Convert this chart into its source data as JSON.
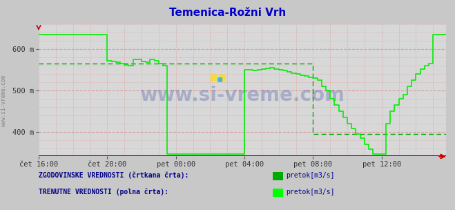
{
  "title": "Temenica-Rožni Vrh",
  "title_color": "#0000cc",
  "bg_color": "#c8c8c8",
  "plot_bg_color": "#d8d8d8",
  "ylim": [
    340,
    660
  ],
  "yticks": [
    400,
    500,
    600
  ],
  "ytick_labels": [
    "400 m",
    "500 m",
    "600 m"
  ],
  "xtick_labels": [
    "čet 16:00",
    "čet 20:00",
    "pet 00:00",
    "pet 04:00",
    "pet 08:00",
    "pet 12:00"
  ],
  "xtick_positions": [
    0,
    16,
    32,
    48,
    64,
    80
  ],
  "total_points": 96,
  "watermark": "www.si-vreme.com",
  "watermark_color": "#1a3399",
  "watermark_alpha": 0.25,
  "legend_hist_label": "pretok[m3/s]",
  "legend_curr_label": "pretok[m3/s]",
  "legend_hist_color": "#00aa00",
  "legend_curr_color": "#00ff00",
  "line_color_hist": "#00aa00",
  "line_color_curr": "#00ee00",
  "hist_y": [
    565,
    565,
    565,
    565,
    565,
    565,
    565,
    565,
    565,
    565,
    565,
    565,
    565,
    565,
    565,
    565,
    565,
    565,
    565,
    565,
    565,
    565,
    565,
    565,
    565,
    565,
    565,
    565,
    565,
    565,
    565,
    565,
    565,
    565,
    565,
    565,
    565,
    565,
    565,
    565,
    565,
    565,
    565,
    565,
    565,
    565,
    565,
    565,
    565,
    565,
    565,
    565,
    565,
    565,
    565,
    565,
    565,
    565,
    565,
    565,
    565,
    565,
    565,
    565,
    395,
    395,
    395,
    395,
    395,
    395,
    395,
    395,
    395,
    395,
    395,
    395,
    395,
    395,
    395,
    395,
    395,
    395,
    395,
    395,
    395,
    395,
    395,
    395,
    395,
    395,
    395,
    395,
    395,
    395,
    395,
    395
  ],
  "curr_y": [
    635,
    635,
    635,
    635,
    635,
    635,
    635,
    635,
    635,
    635,
    635,
    635,
    635,
    635,
    635,
    635,
    572,
    570,
    568,
    565,
    562,
    560,
    575,
    575,
    570,
    568,
    575,
    572,
    565,
    560,
    345,
    345,
    345,
    345,
    345,
    345,
    345,
    345,
    345,
    345,
    345,
    345,
    345,
    345,
    345,
    345,
    345,
    345,
    550,
    550,
    548,
    550,
    552,
    553,
    554,
    552,
    550,
    548,
    545,
    542,
    540,
    537,
    535,
    532,
    530,
    525,
    510,
    500,
    480,
    465,
    450,
    435,
    420,
    408,
    395,
    385,
    370,
    358,
    345,
    345,
    345,
    420,
    450,
    465,
    480,
    490,
    510,
    525,
    540,
    552,
    560,
    565,
    635,
    635,
    635,
    635
  ]
}
